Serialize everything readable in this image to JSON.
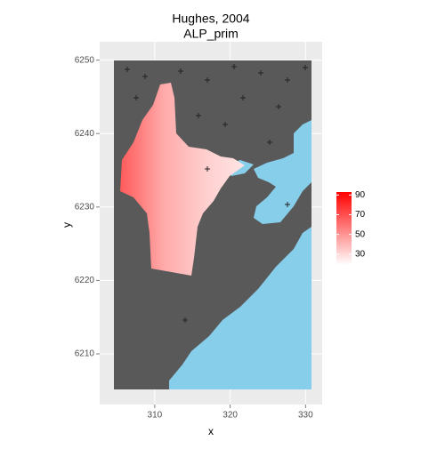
{
  "chart_data": {
    "type": "raster",
    "title": "Hughes, 2004",
    "subtitle": "ALP_prim",
    "x_label": "x",
    "y_label": "y",
    "xlim": [
      302.7,
      332.2
    ],
    "ylim": [
      6203.1,
      6252.5
    ],
    "xticks": [
      310,
      320,
      330
    ],
    "yticks": [
      6210,
      6220,
      6230,
      6240,
      6250
    ],
    "grid": true,
    "land_color": "#595959",
    "water_color": "#87ceeb",
    "colorbar": {
      "limits": [
        19,
        93
      ],
      "ticks": [
        30,
        50,
        70,
        90
      ],
      "low_color": "#ffffff",
      "high_color": "#ff0000"
    }
  }
}
